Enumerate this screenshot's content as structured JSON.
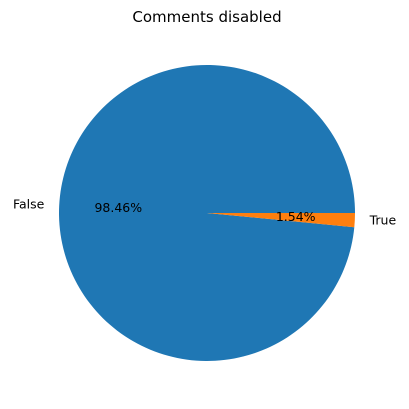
{
  "chart_data": {
    "type": "pie",
    "title": "Comments disabled",
    "slices": [
      {
        "label": "False",
        "value": 98.46,
        "pct_label": "98.46%",
        "color": "#1f77b4"
      },
      {
        "label": "True",
        "value": 1.54,
        "pct_label": "1.54%",
        "color": "#ff7f0e"
      }
    ],
    "start_angle_deg": 0,
    "direction": "counterclockwise",
    "legend": "none"
  }
}
